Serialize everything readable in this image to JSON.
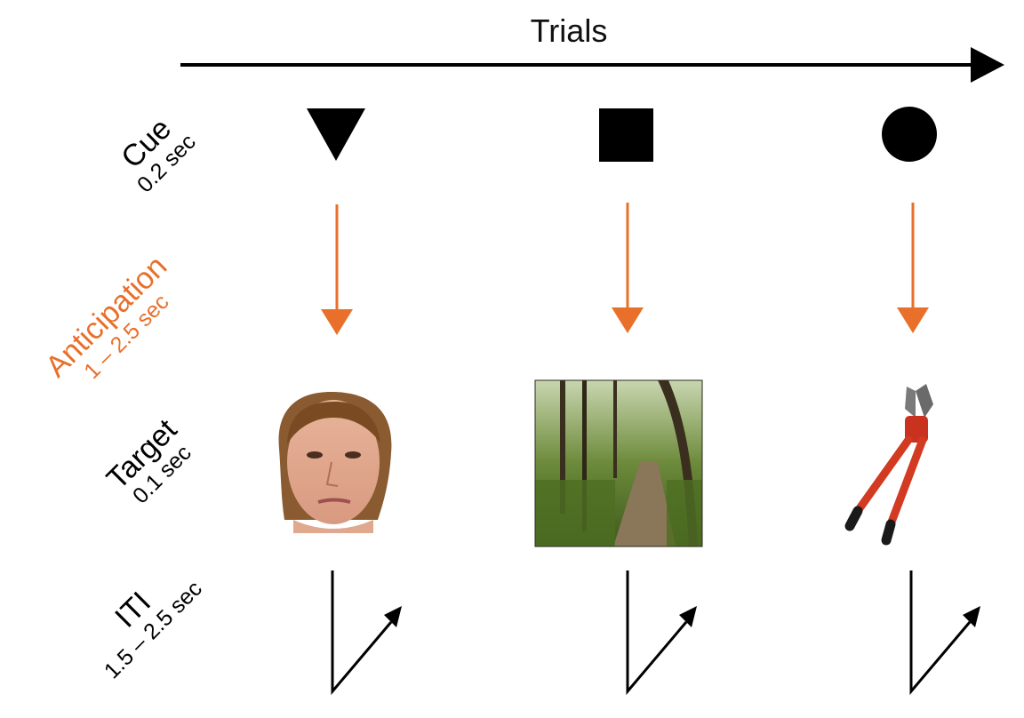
{
  "axis": {
    "label": "Trials"
  },
  "stages": [
    {
      "id": "cue",
      "name": "Cue",
      "duration": "0.2 sec",
      "color": "#000000"
    },
    {
      "id": "anticipation",
      "name": "Anticipation",
      "duration": "1 – 2.5 sec",
      "color": "#E8702A"
    },
    {
      "id": "target",
      "name": "Target",
      "duration": "0.1 sec",
      "color": "#000000"
    },
    {
      "id": "iti",
      "name": "ITI",
      "duration": "1.5 – 2.5 sec",
      "color": "#000000"
    }
  ],
  "trials": [
    {
      "cue_shape": "triangle",
      "target_image": "face-photo"
    },
    {
      "cue_shape": "square",
      "target_image": "forest-path-photo"
    },
    {
      "cue_shape": "circle",
      "target_image": "bolt-cutters-photo"
    }
  ],
  "colors": {
    "anticipation_arrow": "#E8702A",
    "foreground": "#000000"
  }
}
